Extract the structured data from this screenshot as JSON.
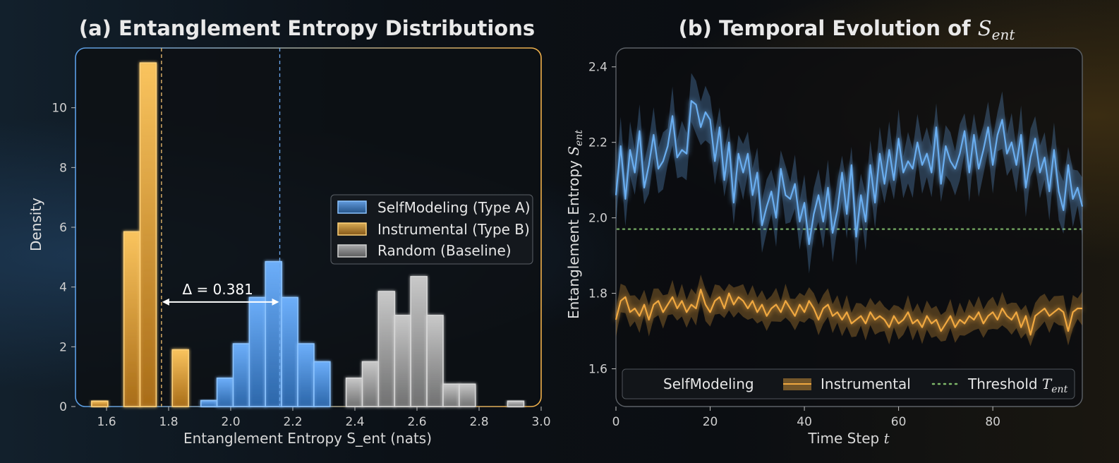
{
  "chart_data": [
    {
      "type": "bar",
      "title": "(a) Entanglement Entropy Distributions",
      "xlabel": "Entanglement Entropy S_ent (nats)",
      "ylabel": "Density",
      "xlim": [
        1.5,
        3.0
      ],
      "ylim": [
        0,
        12
      ],
      "xticks": [
        "1.6",
        "1.8",
        "2.0",
        "2.2",
        "2.4",
        "2.6",
        "2.8",
        "3.0"
      ],
      "yticks": [
        "0",
        "2",
        "4",
        "6",
        "8",
        "10"
      ],
      "bin_width": 0.052,
      "legend_position": "center-right",
      "series": [
        {
          "name": "SelfModeling (Type A)",
          "color": "#5a9ee6",
          "bins": [
            {
              "x0": 1.904,
              "h": 0.2
            },
            {
              "x0": 1.956,
              "h": 0.95
            },
            {
              "x0": 2.008,
              "h": 2.1
            },
            {
              "x0": 2.06,
              "h": 3.65
            },
            {
              "x0": 2.112,
              "h": 4.85
            },
            {
              "x0": 2.164,
              "h": 3.65
            },
            {
              "x0": 2.216,
              "h": 2.1
            },
            {
              "x0": 2.268,
              "h": 1.5
            }
          ],
          "mean": 2.158
        },
        {
          "name": "Instrumental (Type B)",
          "color": "#f0b04a",
          "bins": [
            {
              "x0": 1.552,
              "h": 0.18
            },
            {
              "x0": 1.656,
              "h": 5.85
            },
            {
              "x0": 1.708,
              "h": 11.5
            },
            {
              "x0": 1.76,
              "h": 0.0
            },
            {
              "x0": 1.812,
              "h": 1.9
            }
          ],
          "mean": 1.777
        },
        {
          "name": "Random (Baseline)",
          "color": "#a8a8a8",
          "bins": [
            {
              "x0": 2.372,
              "h": 0.95
            },
            {
              "x0": 2.424,
              "h": 1.5
            },
            {
              "x0": 2.476,
              "h": 3.85
            },
            {
              "x0": 2.528,
              "h": 3.05
            },
            {
              "x0": 2.58,
              "h": 4.35
            },
            {
              "x0": 2.632,
              "h": 3.05
            },
            {
              "x0": 2.684,
              "h": 0.75
            },
            {
              "x0": 2.736,
              "h": 0.75
            },
            {
              "x0": 2.892,
              "h": 0.18
            }
          ]
        }
      ],
      "annotation": {
        "text": "Δ = 0.381",
        "from": 1.777,
        "to": 2.158,
        "y": 3.5
      }
    },
    {
      "type": "line",
      "title": "(b) Temporal Evolution of ",
      "title_math": "S",
      "title_math_sub": "ent",
      "xlabel": "Time Step ",
      "xlabel_math": "t",
      "ylabel": "Entanglement Entropy ",
      "ylabel_math": "S",
      "ylabel_math_sub": "ent",
      "xlim": [
        0,
        99
      ],
      "ylim": [
        1.5,
        2.45
      ],
      "xticks": [
        "0",
        "20",
        "40",
        "60",
        "80"
      ],
      "yticks": [
        "1.6",
        "1.8",
        "2.0",
        "2.2",
        "2.4"
      ],
      "legend_position": "bottom",
      "threshold": {
        "name": "Threshold ",
        "name_math": "T",
        "name_math_sub": "ent",
        "value": 1.97,
        "color": "#7fb86a"
      },
      "series": [
        {
          "name": "SelfModeling",
          "color": "#6aaef0",
          "band": 0.06,
          "values": [
            2.06,
            2.19,
            2.05,
            2.18,
            2.12,
            2.23,
            2.08,
            2.14,
            2.22,
            2.13,
            2.15,
            2.19,
            2.27,
            2.16,
            2.18,
            2.17,
            2.31,
            2.3,
            2.24,
            2.28,
            2.26,
            2.15,
            2.24,
            2.1,
            2.2,
            2.04,
            2.17,
            2.12,
            2.17,
            2.06,
            2.12,
            1.98,
            2.03,
            2.07,
            2.0,
            2.13,
            2.06,
            2.05,
            2.09,
            1.99,
            2.04,
            1.93,
            2.01,
            2.06,
            1.99,
            2.08,
            1.96,
            2.02,
            2.12,
            2.01,
            2.14,
            1.95,
            2.06,
            1.99,
            2.14,
            2.04,
            2.17,
            2.09,
            2.18,
            2.1,
            2.21,
            2.12,
            2.15,
            2.13,
            2.2,
            2.14,
            2.17,
            2.12,
            2.24,
            2.09,
            2.19,
            2.15,
            2.13,
            2.17,
            2.23,
            2.12,
            2.22,
            2.13,
            2.18,
            2.24,
            2.14,
            2.22,
            2.26,
            2.17,
            2.2,
            2.14,
            2.22,
            2.08,
            2.16,
            2.21,
            2.12,
            2.16,
            2.07,
            2.18,
            2.07,
            2.02,
            2.14,
            2.05,
            2.08,
            2.03
          ],
          "label": "SelfModeling"
        },
        {
          "name": "Instrumental",
          "color": "#f0a840",
          "band": 0.035,
          "values": [
            1.73,
            1.78,
            1.79,
            1.75,
            1.76,
            1.74,
            1.77,
            1.73,
            1.77,
            1.78,
            1.75,
            1.77,
            1.79,
            1.76,
            1.78,
            1.75,
            1.77,
            1.76,
            1.81,
            1.77,
            1.75,
            1.78,
            1.79,
            1.76,
            1.8,
            1.77,
            1.79,
            1.78,
            1.76,
            1.78,
            1.75,
            1.77,
            1.74,
            1.76,
            1.77,
            1.75,
            1.78,
            1.76,
            1.74,
            1.77,
            1.75,
            1.78,
            1.76,
            1.73,
            1.76,
            1.77,
            1.74,
            1.75,
            1.73,
            1.75,
            1.72,
            1.73,
            1.74,
            1.72,
            1.75,
            1.73,
            1.74,
            1.73,
            1.71,
            1.74,
            1.72,
            1.73,
            1.75,
            1.72,
            1.73,
            1.71,
            1.74,
            1.72,
            1.73,
            1.7,
            1.72,
            1.74,
            1.71,
            1.73,
            1.72,
            1.74,
            1.73,
            1.75,
            1.72,
            1.74,
            1.75,
            1.73,
            1.76,
            1.74,
            1.73,
            1.75,
            1.71,
            1.74,
            1.69,
            1.74,
            1.75,
            1.76,
            1.74,
            1.75,
            1.76,
            1.75,
            1.7,
            1.75,
            1.76,
            1.76
          ],
          "label": "Instrumental"
        }
      ]
    }
  ]
}
